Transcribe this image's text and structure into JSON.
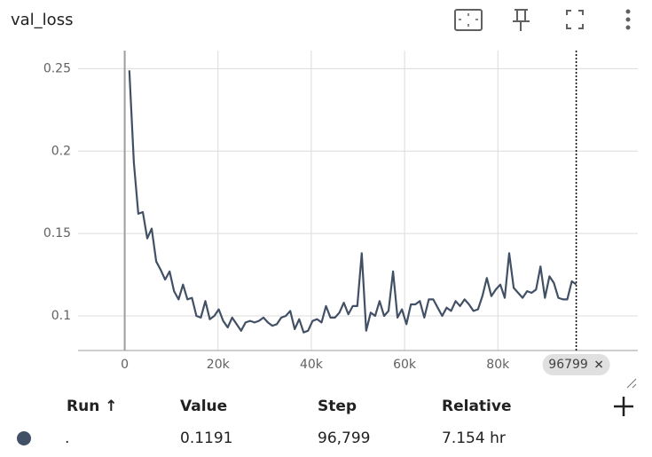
{
  "chart_data": {
    "type": "line",
    "title": "val_loss",
    "x": [
      1000,
      1958,
      2916,
      3874,
      4832,
      5790,
      6748,
      7706,
      8664,
      9622,
      10580,
      11538,
      12496,
      13454,
      14412,
      15370,
      16328,
      17286,
      18244,
      19202,
      20160,
      21118,
      22076,
      23034,
      23992,
      24950,
      25908,
      26866,
      27824,
      28782,
      29740,
      30698,
      31656,
      32614,
      33572,
      34530,
      35488,
      36446,
      37404,
      38362,
      39320,
      40278,
      41236,
      42194,
      43152,
      44110,
      45068,
      46026,
      46984,
      47942,
      48900,
      49858,
      50816,
      51774,
      52732,
      53690,
      54648,
      55606,
      56564,
      57522,
      58480,
      59438,
      60396,
      61354,
      62312,
      63270,
      64228,
      65186,
      66144,
      67102,
      68060,
      69018,
      69976,
      70934,
      71892,
      72850,
      73808,
      74766,
      75724,
      76682,
      77640,
      78598,
      79556,
      80514,
      81472,
      82430,
      83388,
      84346,
      85304,
      86262,
      87220,
      88178,
      89136,
      90094,
      91052,
      92010,
      92968,
      93926,
      94884,
      95842,
      96799
    ],
    "values": [
      0.249,
      0.193,
      0.162,
      0.163,
      0.147,
      0.153,
      0.133,
      0.128,
      0.122,
      0.127,
      0.115,
      0.11,
      0.119,
      0.11,
      0.111,
      0.1,
      0.099,
      0.109,
      0.098,
      0.1,
      0.104,
      0.097,
      0.093,
      0.099,
      0.095,
      0.091,
      0.096,
      0.097,
      0.096,
      0.097,
      0.099,
      0.096,
      0.094,
      0.095,
      0.099,
      0.1,
      0.103,
      0.092,
      0.098,
      0.09,
      0.091,
      0.097,
      0.098,
      0.096,
      0.106,
      0.099,
      0.099,
      0.102,
      0.108,
      0.101,
      0.106,
      0.106,
      0.138,
      0.091,
      0.102,
      0.1,
      0.109,
      0.1,
      0.103,
      0.127,
      0.099,
      0.104,
      0.095,
      0.107,
      0.107,
      0.109,
      0.099,
      0.11,
      0.11,
      0.105,
      0.1,
      0.105,
      0.103,
      0.109,
      0.106,
      0.11,
      0.107,
      0.103,
      0.104,
      0.112,
      0.123,
      0.112,
      0.116,
      0.119,
      0.111,
      0.138,
      0.117,
      0.114,
      0.111,
      0.115,
      0.114,
      0.116,
      0.13,
      0.111,
      0.124,
      0.12,
      0.111,
      0.11,
      0.11,
      0.121,
      0.1191
    ],
    "color": "#425066",
    "xlim": [
      -10000,
      110000
    ],
    "xticks": [
      0,
      {
        "value": 20000,
        "label": "20k"
      },
      {
        "value": 40000,
        "label": "40k"
      },
      {
        "value": 60000,
        "label": "60k"
      },
      {
        "value": 80000,
        "label": "80k"
      }
    ],
    "ylim": [
      0.079,
      0.261
    ],
    "yticks": [
      0.1,
      0.15,
      0.2,
      0.25
    ],
    "grid": true,
    "cursor": 96799,
    "table": {
      "headers": [
        "Run ↑",
        "Value",
        "Step",
        "Relative"
      ],
      "rows": [
        [
          ".",
          "0.1191",
          "96,799",
          "7.154 hr"
        ]
      ]
    }
  }
}
